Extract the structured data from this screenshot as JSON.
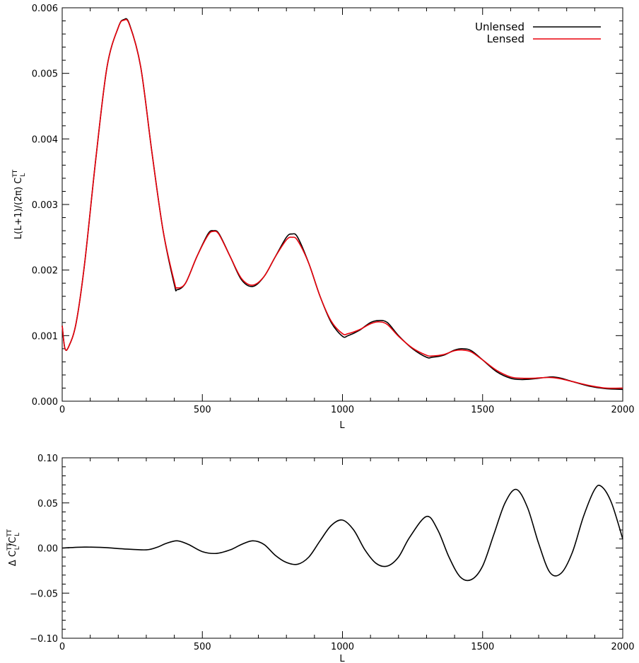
{
  "chart_data": [
    {
      "type": "line",
      "xlabel": "L",
      "ylabel": "L(L+1)/(2π) C",
      "ylabel_sup": "TT",
      "ylabel_sub": "L",
      "xlim": [
        0,
        2000
      ],
      "ylim": [
        0,
        0.006
      ],
      "xticks": [
        0,
        500,
        1000,
        1500,
        2000
      ],
      "xtick_labels": [
        "0",
        "500",
        "1000",
        "1500",
        "2000"
      ],
      "yticks": [
        0,
        0.001,
        0.002,
        0.003,
        0.004,
        0.005,
        0.006
      ],
      "ytick_labels": [
        "0.000",
        "0.001",
        "0.002",
        "0.003",
        "0.004",
        "0.005",
        "0.006"
      ],
      "grid": false,
      "legend": "top-right",
      "series": [
        {
          "name": "Unlensed",
          "color": "#000000",
          "x": [
            0,
            10,
            25,
            50,
            80,
            120,
            160,
            200,
            220,
            240,
            280,
            320,
            360,
            400,
            410,
            440,
            480,
            520,
            540,
            560,
            600,
            640,
            680,
            720,
            760,
            800,
            820,
            840,
            880,
            920,
            960,
            1000,
            1020,
            1060,
            1100,
            1130,
            1160,
            1200,
            1250,
            1300,
            1320,
            1360,
            1400,
            1430,
            1460,
            1500,
            1550,
            1600,
            1640,
            1680,
            1720,
            1750,
            1780,
            1820,
            1880,
            1940,
            2000
          ],
          "y": [
            0.00115,
            0.0008,
            0.00085,
            0.0012,
            0.0021,
            0.0037,
            0.0051,
            0.0057,
            0.00582,
            0.00575,
            0.0051,
            0.0038,
            0.0026,
            0.00178,
            0.0017,
            0.0018,
            0.0022,
            0.00255,
            0.0026,
            0.00255,
            0.0022,
            0.00185,
            0.00175,
            0.0019,
            0.0022,
            0.0025,
            0.00255,
            0.0025,
            0.0021,
            0.0016,
            0.0012,
            0.00099,
            0.001,
            0.00108,
            0.0012,
            0.00123,
            0.0012,
            0.001,
            0.0008,
            0.00067,
            0.00067,
            0.0007,
            0.00078,
            0.0008,
            0.00077,
            0.00063,
            0.00045,
            0.00035,
            0.00033,
            0.00034,
            0.00036,
            0.00037,
            0.00035,
            0.0003,
            0.00023,
            0.00019,
            0.00018
          ]
        },
        {
          "name": "Lensed",
          "color": "#e8000b",
          "x": [
            0,
            10,
            25,
            50,
            80,
            120,
            160,
            200,
            220,
            240,
            280,
            320,
            360,
            400,
            410,
            440,
            480,
            520,
            540,
            560,
            600,
            640,
            680,
            720,
            760,
            800,
            820,
            840,
            880,
            920,
            960,
            1000,
            1020,
            1060,
            1100,
            1130,
            1160,
            1200,
            1250,
            1300,
            1320,
            1360,
            1400,
            1430,
            1460,
            1500,
            1550,
            1600,
            1640,
            1680,
            1720,
            1750,
            1780,
            1820,
            1880,
            1940,
            2000
          ],
          "y": [
            0.00115,
            0.0008,
            0.00085,
            0.0012,
            0.0021,
            0.0037,
            0.0051,
            0.0057,
            0.00581,
            0.00574,
            0.0051,
            0.0038,
            0.0026,
            0.00182,
            0.00173,
            0.0018,
            0.0022,
            0.00253,
            0.00259,
            0.00254,
            0.0022,
            0.00187,
            0.00177,
            0.0019,
            0.0022,
            0.00246,
            0.0025,
            0.00245,
            0.0021,
            0.0016,
            0.00122,
            0.00103,
            0.00103,
            0.00109,
            0.00118,
            0.00121,
            0.00117,
            0.00099,
            0.00081,
            0.0007,
            0.00069,
            0.00071,
            0.00077,
            0.00078,
            0.00075,
            0.00063,
            0.00047,
            0.00037,
            0.00035,
            0.00035,
            0.00036,
            0.00036,
            0.00034,
            0.0003,
            0.00024,
            0.0002,
            0.0002
          ]
        }
      ]
    },
    {
      "type": "line",
      "xlabel": "L",
      "ylabel": "Δ C",
      "ylabel_sup": "TT",
      "ylabel_sub": "L",
      "ylabel_mid": "/C",
      "xlim": [
        0,
        2000
      ],
      "ylim": [
        -0.1,
        0.1
      ],
      "xticks": [
        0,
        500,
        1000,
        1500,
        2000
      ],
      "xtick_labels": [
        "0",
        "500",
        "1000",
        "1500",
        "2000"
      ],
      "yticks": [
        -0.1,
        -0.05,
        0,
        0.05,
        0.1
      ],
      "ytick_labels": [
        "−0.10",
        "−0.05",
        "0.00",
        "0.05",
        "0.10"
      ],
      "grid": false,
      "series": [
        {
          "color": "#000000",
          "x": [
            0,
            80,
            150,
            220,
            300,
            340,
            370,
            410,
            450,
            500,
            550,
            600,
            640,
            680,
            720,
            760,
            800,
            840,
            880,
            920,
            960,
            1000,
            1040,
            1080,
            1120,
            1160,
            1200,
            1240,
            1300,
            1340,
            1380,
            1420,
            1460,
            1500,
            1540,
            1580,
            1620,
            1660,
            1700,
            1740,
            1780,
            1820,
            1860,
            1900,
            1925,
            1960,
            2000
          ],
          "y": [
            0,
            0.001,
            0.0005,
            -0.001,
            -0.002,
            0.001,
            0.005,
            0.008,
            0.004,
            -0.004,
            -0.006,
            -0.002,
            0.004,
            0.008,
            0.004,
            -0.008,
            -0.016,
            -0.018,
            -0.01,
            0.008,
            0.025,
            0.031,
            0.02,
            -0.002,
            -0.017,
            -0.02,
            -0.01,
            0.012,
            0.035,
            0.02,
            -0.01,
            -0.032,
            -0.035,
            -0.02,
            0.015,
            0.05,
            0.065,
            0.045,
            0.005,
            -0.027,
            -0.028,
            -0.005,
            0.035,
            0.065,
            0.068,
            0.05,
            0.01
          ]
        }
      ]
    }
  ],
  "colors": {
    "axis": "#000000",
    "unlensed": "#000000",
    "lensed": "#e8000b"
  }
}
